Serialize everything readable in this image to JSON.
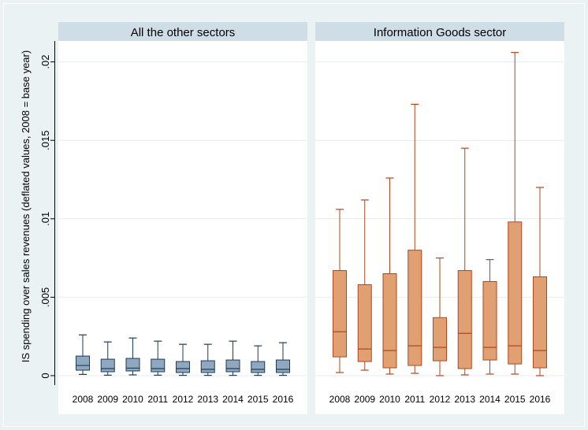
{
  "chart_data": {
    "type": "box",
    "ylabel": "IS spending over sales revenues (deflated values, 2008 = base year)",
    "ylim": [
      0,
      0.021
    ],
    "yticks": [
      0,
      0.005,
      0.01,
      0.015,
      0.02
    ],
    "ytick_labels": [
      "0",
      ".005",
      ".01",
      ".015",
      ".02"
    ],
    "categories": [
      "2008",
      "2009",
      "2010",
      "2011",
      "2012",
      "2013",
      "2014",
      "2015",
      "2016"
    ],
    "grid": true,
    "panels": [
      {
        "title": "All the other sectors",
        "fill": "#8fa8bf",
        "stroke": "#1f3b57",
        "boxes": [
          {
            "min": 8e-05,
            "q1": 0.00035,
            "median": 0.00065,
            "q3": 0.00125,
            "max": 0.0026
          },
          {
            "min": 3e-05,
            "q1": 0.00025,
            "median": 0.00045,
            "q3": 0.00105,
            "max": 0.00215
          },
          {
            "min": 5e-05,
            "q1": 0.0003,
            "median": 0.00048,
            "q3": 0.0011,
            "max": 0.0024
          },
          {
            "min": 3e-05,
            "q1": 0.00025,
            "median": 0.00045,
            "q3": 0.00105,
            "max": 0.0022
          },
          {
            "min": 2e-05,
            "q1": 0.0002,
            "median": 0.00045,
            "q3": 0.0009,
            "max": 0.002
          },
          {
            "min": 2e-05,
            "q1": 0.0002,
            "median": 0.0004,
            "q3": 0.00095,
            "max": 0.002
          },
          {
            "min": 2e-05,
            "q1": 0.00025,
            "median": 0.00045,
            "q3": 0.001,
            "max": 0.0022
          },
          {
            "min": 2e-05,
            "q1": 0.0002,
            "median": 0.0004,
            "q3": 0.0009,
            "max": 0.0019
          },
          {
            "min": 2e-05,
            "q1": 0.0002,
            "median": 0.0004,
            "q3": 0.001,
            "max": 0.0021
          }
        ]
      },
      {
        "title": "Information Goods sector",
        "fill": "#e0a072",
        "stroke": "#b2471b",
        "boxes": [
          {
            "min": 0.0002,
            "q1": 0.0012,
            "median": 0.0028,
            "q3": 0.0067,
            "max": 0.0106
          },
          {
            "min": 0.00035,
            "q1": 0.0009,
            "median": 0.0017,
            "q3": 0.0058,
            "max": 0.0112
          },
          {
            "min": 0.0001,
            "q1": 0.0005,
            "median": 0.0016,
            "q3": 0.0065,
            "max": 0.0126
          },
          {
            "min": 0.00015,
            "q1": 0.00065,
            "median": 0.0019,
            "q3": 0.008,
            "max": 0.0173
          },
          {
            "min": 0.0,
            "q1": 0.00095,
            "median": 0.0018,
            "q3": 0.0037,
            "max": 0.0075
          },
          {
            "min": 5e-05,
            "q1": 0.00045,
            "median": 0.0027,
            "q3": 0.0067,
            "max": 0.0145
          },
          {
            "min": 0.0001,
            "q1": 0.001,
            "median": 0.0018,
            "q3": 0.006,
            "max": 0.0074
          },
          {
            "min": 0.0001,
            "q1": 0.00075,
            "median": 0.0019,
            "q3": 0.0098,
            "max": 0.0206
          },
          {
            "min": 0.0,
            "q1": 0.0005,
            "median": 0.0016,
            "q3": 0.0063,
            "max": 0.012
          }
        ]
      }
    ]
  }
}
